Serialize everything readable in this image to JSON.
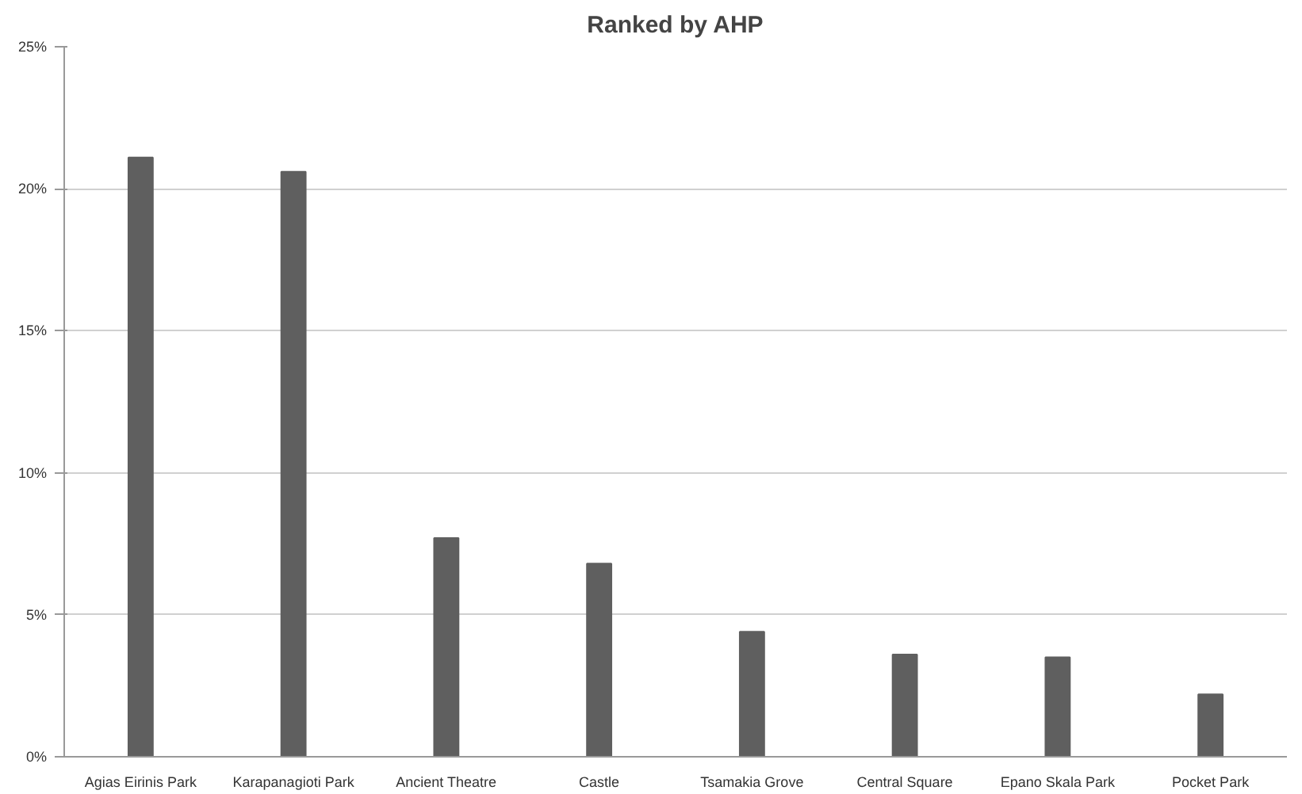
{
  "chart_data": {
    "type": "bar",
    "title": "Ranked by AHP",
    "categories": [
      "Agias Eirinis Park",
      "Karapanagioti Park",
      "Ancient Theatre",
      "Castle",
      "Tsamakia Grove",
      "Central Square",
      "Epano Skala Park",
      "Pocket Park"
    ],
    "values": [
      21.1,
      20.6,
      7.7,
      6.8,
      4.4,
      3.6,
      3.5,
      2.2
    ],
    "color": "#5f5f5f",
    "ylim": [
      0,
      25
    ],
    "yticks": [
      {
        "value": 0,
        "label": "0%"
      },
      {
        "value": 5,
        "label": "5%"
      },
      {
        "value": 10,
        "label": "10%"
      },
      {
        "value": 15,
        "label": "15%"
      },
      {
        "value": 20,
        "label": "20%"
      },
      {
        "value": 25,
        "label": "25%"
      }
    ],
    "grid": "y"
  }
}
